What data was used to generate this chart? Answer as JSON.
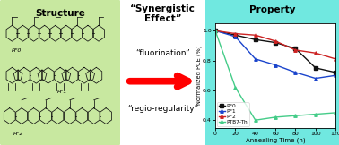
{
  "title_left": "Structure",
  "title_middle": "“Synergistic\nEffect”",
  "title_right": "Property",
  "label_fluorination": "“fluorination”",
  "label_regio": "“regio-regularity”",
  "xlabel": "Annealing Time (h)",
  "ylabel": "Normalized PCE (%)",
  "xlim": [
    0,
    120
  ],
  "ylim": [
    0.35,
    1.05
  ],
  "xticks": [
    0,
    20,
    40,
    60,
    80,
    100,
    120
  ],
  "yticks": [
    0.4,
    0.6,
    0.8,
    1.0
  ],
  "bg_left": "#c8e8a0",
  "bg_right": "#70e8e0",
  "series": {
    "PF0": {
      "x": [
        0,
        20,
        40,
        60,
        80,
        100,
        120
      ],
      "y": [
        1.0,
        0.97,
        0.94,
        0.92,
        0.88,
        0.75,
        0.72
      ],
      "color": "#111111",
      "marker": "s"
    },
    "PF1": {
      "x": [
        0,
        20,
        40,
        60,
        80,
        100,
        120
      ],
      "y": [
        1.0,
        0.96,
        0.81,
        0.77,
        0.72,
        0.68,
        0.7
      ],
      "color": "#1a44cc",
      "marker": "^"
    },
    "PF2": {
      "x": [
        0,
        20,
        40,
        60,
        80,
        100,
        120
      ],
      "y": [
        1.0,
        0.98,
        0.97,
        0.93,
        0.87,
        0.85,
        0.81
      ],
      "color": "#cc2222",
      "marker": "^"
    },
    "PTB7-Th": {
      "x": [
        0,
        20,
        40,
        60,
        80,
        100,
        120
      ],
      "y": [
        1.0,
        0.62,
        0.4,
        0.42,
        0.43,
        0.44,
        0.45
      ],
      "color": "#44cc88",
      "marker": "^"
    }
  }
}
